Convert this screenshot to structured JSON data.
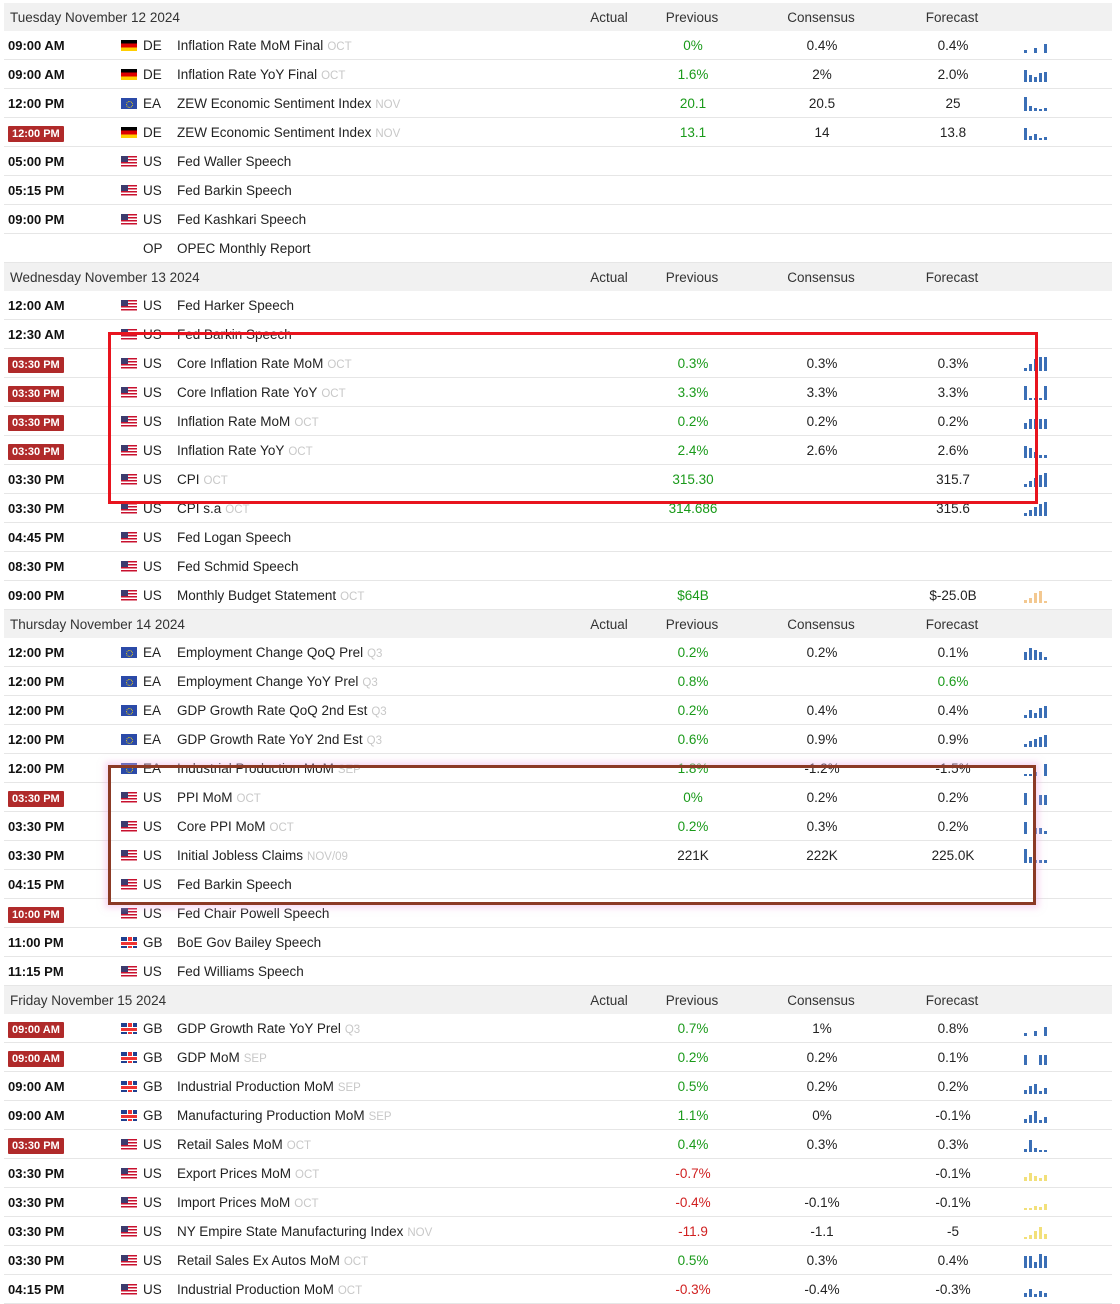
{
  "headers": {
    "actual": "Actual",
    "previous": "Previous",
    "consensus": "Consensus",
    "forecast": "Forecast"
  },
  "days": [
    {
      "date": "Tuesday November 12 2024",
      "rows": [
        {
          "time": "09:00 AM",
          "hl": false,
          "flag": "de",
          "cc": "DE",
          "event": "Inflation Rate MoM Final",
          "ref": "OCT",
          "actual": "",
          "prev": "0%",
          "prev_color": "green",
          "cons": "0.4%",
          "fc": "0.4%",
          "fc_color": "",
          "spark": [
            3,
            0,
            5,
            0,
            9
          ],
          "spark_color": "blue"
        },
        {
          "time": "09:00 AM",
          "hl": false,
          "flag": "de",
          "cc": "DE",
          "event": "Inflation Rate YoY Final",
          "ref": "OCT",
          "actual": "",
          "prev": "1.6%",
          "prev_color": "green",
          "cons": "2%",
          "fc": "2.0%",
          "fc_color": "",
          "spark": [
            12,
            7,
            5,
            9,
            10
          ],
          "spark_color": "blue"
        },
        {
          "time": "12:00 PM",
          "hl": false,
          "flag": "ea",
          "cc": "EA",
          "event": "ZEW Economic Sentiment Index",
          "ref": "NOV",
          "actual": "",
          "prev": "20.1",
          "prev_color": "green",
          "cons": "20.5",
          "fc": "25",
          "fc_color": "",
          "spark": [
            14,
            5,
            3,
            2,
            3
          ],
          "spark_color": "blue"
        },
        {
          "time": "12:00 PM",
          "hl": true,
          "flag": "de",
          "cc": "DE",
          "event": "ZEW Economic Sentiment Index",
          "ref": "NOV",
          "actual": "",
          "prev": "13.1",
          "prev_color": "green",
          "cons": "14",
          "fc": "13.8",
          "fc_color": "",
          "spark": [
            12,
            4,
            6,
            2,
            3
          ],
          "spark_color": "blue"
        },
        {
          "time": "05:00 PM",
          "hl": false,
          "flag": "us",
          "cc": "US",
          "event": "Fed Waller Speech",
          "ref": "",
          "actual": "",
          "prev": "",
          "prev_color": "",
          "cons": "",
          "fc": "",
          "fc_color": "",
          "spark": [],
          "spark_color": ""
        },
        {
          "time": "05:15 PM",
          "hl": false,
          "flag": "us",
          "cc": "US",
          "event": "Fed Barkin Speech",
          "ref": "",
          "actual": "",
          "prev": "",
          "prev_color": "",
          "cons": "",
          "fc": "",
          "fc_color": "",
          "spark": [],
          "spark_color": ""
        },
        {
          "time": "09:00 PM",
          "hl": false,
          "flag": "us",
          "cc": "US",
          "event": "Fed Kashkari Speech",
          "ref": "",
          "actual": "",
          "prev": "",
          "prev_color": "",
          "cons": "",
          "fc": "",
          "fc_color": "",
          "spark": [],
          "spark_color": ""
        },
        {
          "time": "",
          "hl": false,
          "flag": "op",
          "cc": "OP",
          "event": "OPEC Monthly Report",
          "ref": "",
          "actual": "",
          "prev": "",
          "prev_color": "",
          "cons": "",
          "fc": "",
          "fc_color": "",
          "spark": [],
          "spark_color": ""
        }
      ]
    },
    {
      "date": "Wednesday November 13 2024",
      "rows": [
        {
          "time": "12:00 AM",
          "hl": false,
          "flag": "us",
          "cc": "US",
          "event": "Fed Harker Speech",
          "ref": "",
          "actual": "",
          "prev": "",
          "prev_color": "",
          "cons": "",
          "fc": "",
          "fc_color": "",
          "spark": [],
          "spark_color": ""
        },
        {
          "time": "12:30 AM",
          "hl": false,
          "flag": "us",
          "cc": "US",
          "event": "Fed Barkin Speech",
          "ref": "",
          "actual": "",
          "prev": "",
          "prev_color": "",
          "cons": "",
          "fc": "",
          "fc_color": "",
          "spark": [],
          "spark_color": ""
        },
        {
          "time": "03:30 PM",
          "hl": true,
          "flag": "us",
          "cc": "US",
          "event": "Core Inflation Rate MoM",
          "ref": "OCT",
          "actual": "",
          "prev": "0.3%",
          "prev_color": "green",
          "cons": "0.3%",
          "fc": "0.3%",
          "fc_color": "",
          "spark": [
            3,
            7,
            12,
            14,
            14
          ],
          "spark_color": "blue"
        },
        {
          "time": "03:30 PM",
          "hl": true,
          "flag": "us",
          "cc": "US",
          "event": "Core Inflation Rate YoY",
          "ref": "OCT",
          "actual": "",
          "prev": "3.3%",
          "prev_color": "green",
          "cons": "3.3%",
          "fc": "3.3%",
          "fc_color": "",
          "spark": [
            14,
            2,
            2,
            2,
            14
          ],
          "spark_color": "blue"
        },
        {
          "time": "03:30 PM",
          "hl": true,
          "flag": "us",
          "cc": "US",
          "event": "Inflation Rate MoM",
          "ref": "OCT",
          "actual": "",
          "prev": "0.2%",
          "prev_color": "green",
          "cons": "0.2%",
          "fc": "0.2%",
          "fc_color": "",
          "spark": [
            6,
            10,
            10,
            10,
            10
          ],
          "spark_color": "blue"
        },
        {
          "time": "03:30 PM",
          "hl": true,
          "flag": "us",
          "cc": "US",
          "event": "Inflation Rate YoY",
          "ref": "OCT",
          "actual": "",
          "prev": "2.4%",
          "prev_color": "green",
          "cons": "2.6%",
          "fc": "2.6%",
          "fc_color": "",
          "spark": [
            12,
            10,
            6,
            3,
            3
          ],
          "spark_color": "blue"
        },
        {
          "time": "03:30 PM",
          "hl": false,
          "flag": "us",
          "cc": "US",
          "event": "CPI",
          "ref": "OCT",
          "actual": "",
          "prev": "315.30",
          "prev_color": "green",
          "cons": "",
          "fc": "315.7",
          "fc_color": "",
          "spark": [
            3,
            6,
            9,
            12,
            14
          ],
          "spark_color": "blue"
        },
        {
          "time": "03:30 PM",
          "hl": false,
          "flag": "us",
          "cc": "US",
          "event": "CPI s.a",
          "ref": "OCT",
          "actual": "",
          "prev": "314.686",
          "prev_color": "green",
          "cons": "",
          "fc": "315.6",
          "fc_color": "",
          "spark": [
            3,
            6,
            9,
            12,
            14
          ],
          "spark_color": "blue"
        },
        {
          "time": "04:45 PM",
          "hl": false,
          "flag": "us",
          "cc": "US",
          "event": "Fed Logan Speech",
          "ref": "",
          "actual": "",
          "prev": "",
          "prev_color": "",
          "cons": "",
          "fc": "",
          "fc_color": "",
          "spark": [],
          "spark_color": ""
        },
        {
          "time": "08:30 PM",
          "hl": false,
          "flag": "us",
          "cc": "US",
          "event": "Fed Schmid Speech",
          "ref": "",
          "actual": "",
          "prev": "",
          "prev_color": "",
          "cons": "",
          "fc": "",
          "fc_color": "",
          "spark": [],
          "spark_color": ""
        },
        {
          "time": "09:00 PM",
          "hl": false,
          "flag": "us",
          "cc": "US",
          "event": "Monthly Budget Statement",
          "ref": "OCT",
          "actual": "",
          "prev": "$64B",
          "prev_color": "green",
          "cons": "",
          "fc": "$-25.0B",
          "fc_color": "",
          "spark": [
            3,
            5,
            10,
            12,
            2
          ],
          "spark_color": "orange"
        }
      ]
    },
    {
      "date": "Thursday November 14 2024",
      "rows": [
        {
          "time": "12:00 PM",
          "hl": false,
          "flag": "ea",
          "cc": "EA",
          "event": "Employment Change QoQ Prel",
          "ref": "Q3",
          "actual": "",
          "prev": "0.2%",
          "prev_color": "green",
          "cons": "0.2%",
          "fc": "0.1%",
          "fc_color": "",
          "spark": [
            8,
            12,
            10,
            8,
            3
          ],
          "spark_color": "blue"
        },
        {
          "time": "12:00 PM",
          "hl": false,
          "flag": "ea",
          "cc": "EA",
          "event": "Employment Change YoY Prel",
          "ref": "Q3",
          "actual": "",
          "prev": "0.8%",
          "prev_color": "green",
          "cons": "",
          "fc": "0.6%",
          "fc_color": "green",
          "spark": [],
          "spark_color": ""
        },
        {
          "time": "12:00 PM",
          "hl": false,
          "flag": "ea",
          "cc": "EA",
          "event": "GDP Growth Rate QoQ 2nd Est",
          "ref": "Q3",
          "actual": "",
          "prev": "0.2%",
          "prev_color": "green",
          "cons": "0.4%",
          "fc": "0.4%",
          "fc_color": "",
          "spark": [
            3,
            8,
            5,
            10,
            12
          ],
          "spark_color": "blue"
        },
        {
          "time": "12:00 PM",
          "hl": false,
          "flag": "ea",
          "cc": "EA",
          "event": "GDP Growth Rate YoY 2nd Est",
          "ref": "Q3",
          "actual": "",
          "prev": "0.6%",
          "prev_color": "green",
          "cons": "0.9%",
          "fc": "0.9%",
          "fc_color": "",
          "spark": [
            3,
            6,
            8,
            10,
            12
          ],
          "spark_color": "blue"
        },
        {
          "time": "12:00 PM",
          "hl": false,
          "flag": "ea",
          "cc": "EA",
          "event": "Industrial Production MoM",
          "ref": "SEP",
          "actual": "",
          "prev": "1.8%",
          "prev_color": "green",
          "cons": "-1.2%",
          "fc": "-1.5%",
          "fc_color": "",
          "spark": [
            2,
            2,
            4,
            0,
            12
          ],
          "spark_color": "blue"
        },
        {
          "time": "03:30 PM",
          "hl": true,
          "flag": "us",
          "cc": "US",
          "event": "PPI MoM",
          "ref": "OCT",
          "actual": "",
          "prev": "0%",
          "prev_color": "green",
          "cons": "0.2%",
          "fc": "0.2%",
          "fc_color": "",
          "spark": [
            12,
            0,
            0,
            10,
            10
          ],
          "spark_color": "blue"
        },
        {
          "time": "03:30 PM",
          "hl": false,
          "flag": "us",
          "cc": "US",
          "event": "Core PPI MoM",
          "ref": "OCT",
          "actual": "",
          "prev": "0.2%",
          "prev_color": "green",
          "cons": "0.3%",
          "fc": "0.2%",
          "fc_color": "",
          "spark": [
            12,
            0,
            6,
            6,
            3
          ],
          "spark_color": "blue"
        },
        {
          "time": "03:30 PM",
          "hl": false,
          "flag": "us",
          "cc": "US",
          "event": "Initial Jobless Claims",
          "ref": "NOV/09",
          "actual": "",
          "prev": "221K",
          "prev_color": "",
          "cons": "222K",
          "fc": "225.0K",
          "fc_color": "",
          "spark": [
            14,
            6,
            3,
            3,
            3
          ],
          "spark_color": "blue"
        },
        {
          "time": "04:15 PM",
          "hl": false,
          "flag": "us",
          "cc": "US",
          "event": "Fed Barkin Speech",
          "ref": "",
          "actual": "",
          "prev": "",
          "prev_color": "",
          "cons": "",
          "fc": "",
          "fc_color": "",
          "spark": [],
          "spark_color": ""
        },
        {
          "time": "10:00 PM",
          "hl": true,
          "flag": "us",
          "cc": "US",
          "event": "Fed Chair Powell Speech",
          "ref": "",
          "actual": "",
          "prev": "",
          "prev_color": "",
          "cons": "",
          "fc": "",
          "fc_color": "",
          "spark": [],
          "spark_color": ""
        },
        {
          "time": "11:00 PM",
          "hl": false,
          "flag": "gb",
          "cc": "GB",
          "event": "BoE Gov Bailey Speech",
          "ref": "",
          "actual": "",
          "prev": "",
          "prev_color": "",
          "cons": "",
          "fc": "",
          "fc_color": "",
          "spark": [],
          "spark_color": ""
        },
        {
          "time": "11:15 PM",
          "hl": false,
          "flag": "us",
          "cc": "US",
          "event": "Fed Williams Speech",
          "ref": "",
          "actual": "",
          "prev": "",
          "prev_color": "",
          "cons": "",
          "fc": "",
          "fc_color": "",
          "spark": [],
          "spark_color": ""
        }
      ]
    },
    {
      "date": "Friday November 15 2024",
      "rows": [
        {
          "time": "09:00 AM",
          "hl": true,
          "flag": "gb",
          "cc": "GB",
          "event": "GDP Growth Rate YoY Prel",
          "ref": "Q3",
          "actual": "",
          "prev": "0.7%",
          "prev_color": "green",
          "cons": "1%",
          "fc": "0.8%",
          "fc_color": "",
          "spark": [
            3,
            0,
            5,
            0,
            9
          ],
          "spark_color": "blue"
        },
        {
          "time": "09:00 AM",
          "hl": true,
          "flag": "gb",
          "cc": "GB",
          "event": "GDP MoM",
          "ref": "SEP",
          "actual": "",
          "prev": "0.2%",
          "prev_color": "green",
          "cons": "0.2%",
          "fc": "0.1%",
          "fc_color": "",
          "spark": [
            10,
            0,
            0,
            10,
            10
          ],
          "spark_color": "blue"
        },
        {
          "time": "09:00 AM",
          "hl": false,
          "flag": "gb",
          "cc": "GB",
          "event": "Industrial Production MoM",
          "ref": "SEP",
          "actual": "",
          "prev": "0.5%",
          "prev_color": "green",
          "cons": "0.2%",
          "fc": "0.2%",
          "fc_color": "",
          "spark": [
            4,
            8,
            10,
            3,
            6
          ],
          "spark_color": "blue"
        },
        {
          "time": "09:00 AM",
          "hl": false,
          "flag": "gb",
          "cc": "GB",
          "event": "Manufacturing Production MoM",
          "ref": "SEP",
          "actual": "",
          "prev": "1.1%",
          "prev_color": "green",
          "cons": "0%",
          "fc": "-0.1%",
          "fc_color": "",
          "spark": [
            4,
            8,
            12,
            3,
            6
          ],
          "spark_color": "blue"
        },
        {
          "time": "03:30 PM",
          "hl": true,
          "flag": "us",
          "cc": "US",
          "event": "Retail Sales MoM",
          "ref": "OCT",
          "actual": "",
          "prev": "0.4%",
          "prev_color": "green",
          "cons": "0.3%",
          "fc": "0.3%",
          "fc_color": "",
          "spark": [
            3,
            12,
            4,
            2,
            2
          ],
          "spark_color": "blue"
        },
        {
          "time": "03:30 PM",
          "hl": false,
          "flag": "us",
          "cc": "US",
          "event": "Export Prices MoM",
          "ref": "OCT",
          "actual": "",
          "prev": "-0.7%",
          "prev_color": "red",
          "cons": "",
          "fc": "-0.1%",
          "fc_color": "",
          "spark": [
            4,
            8,
            5,
            3,
            6
          ],
          "spark_color": "yellow"
        },
        {
          "time": "03:30 PM",
          "hl": false,
          "flag": "us",
          "cc": "US",
          "event": "Import Prices MoM",
          "ref": "OCT",
          "actual": "",
          "prev": "-0.4%",
          "prev_color": "red",
          "cons": "-0.1%",
          "fc": "-0.1%",
          "fc_color": "",
          "spark": [
            2,
            2,
            4,
            3,
            6
          ],
          "spark_color": "yellow"
        },
        {
          "time": "03:30 PM",
          "hl": false,
          "flag": "us",
          "cc": "US",
          "event": "NY Empire State Manufacturing Index",
          "ref": "NOV",
          "actual": "",
          "prev": "-11.9",
          "prev_color": "red",
          "cons": "-1.1",
          "fc": "-5",
          "fc_color": "",
          "spark": [
            2,
            4,
            8,
            12,
            5
          ],
          "spark_color": "yellow"
        },
        {
          "time": "03:30 PM",
          "hl": false,
          "flag": "us",
          "cc": "US",
          "event": "Retail Sales Ex Autos MoM",
          "ref": "OCT",
          "actual": "",
          "prev": "0.5%",
          "prev_color": "green",
          "cons": "0.3%",
          "fc": "0.4%",
          "fc_color": "",
          "spark": [
            12,
            12,
            6,
            14,
            12
          ],
          "spark_color": "blue"
        },
        {
          "time": "04:15 PM",
          "hl": false,
          "flag": "us",
          "cc": "US",
          "event": "Industrial Production MoM",
          "ref": "OCT",
          "actual": "",
          "prev": "-0.3%",
          "prev_color": "red",
          "cons": "-0.4%",
          "fc": "-0.3%",
          "fc_color": "",
          "spark": [
            4,
            8,
            3,
            6,
            4
          ],
          "spark_color": "blue"
        }
      ]
    }
  ]
}
